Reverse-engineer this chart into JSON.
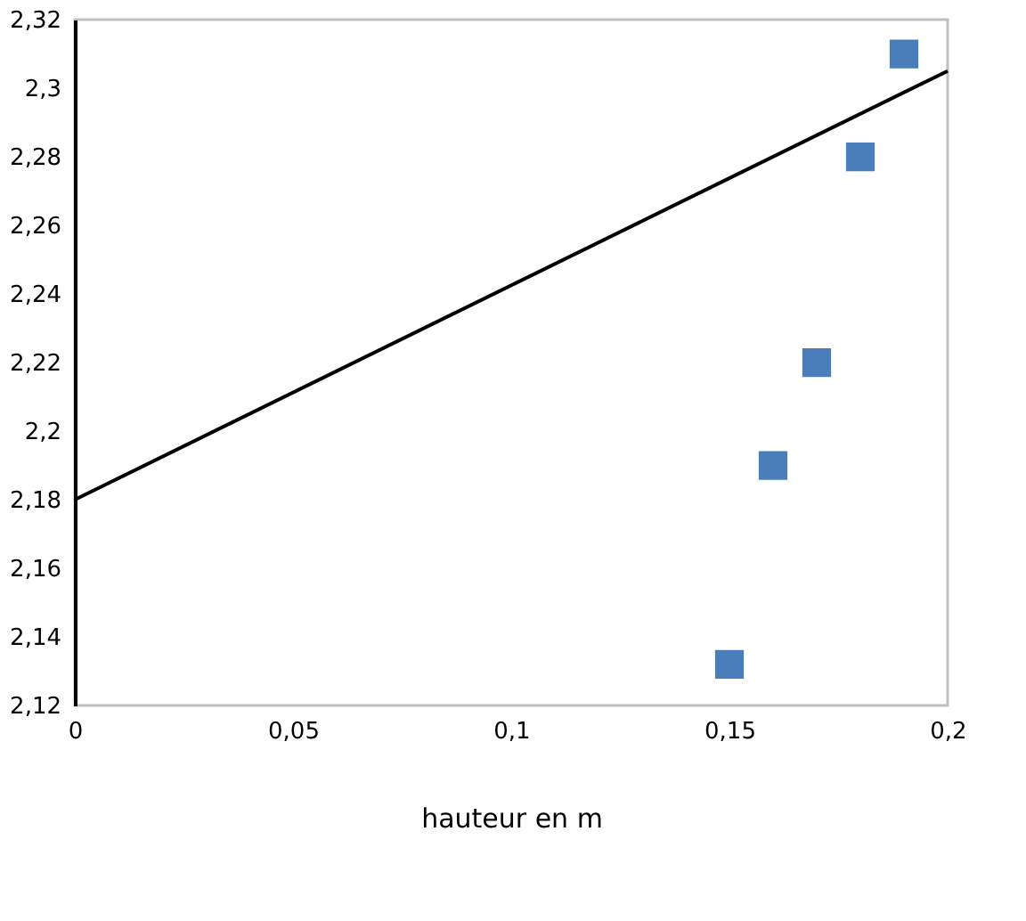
{
  "chart_data": {
    "type": "scatter",
    "xlabel": "hauteur en m",
    "xlim": [
      0,
      0.2
    ],
    "ylim": [
      2.12,
      2.32
    ],
    "xticks": [
      0,
      {
        "value": 0.05,
        "label": "0,05"
      },
      {
        "value": 0.1,
        "label": "0,1"
      },
      {
        "value": 0.15,
        "label": "0,15"
      },
      {
        "value": 0.2,
        "label": "0,2"
      }
    ],
    "yticks": [
      {
        "value": 2.12,
        "label": "2,12"
      },
      {
        "value": 2.14,
        "label": "2,14"
      },
      {
        "value": 2.16,
        "label": "2,16"
      },
      {
        "value": 2.18,
        "label": "2,18"
      },
      {
        "value": 2.2,
        "label": "2,2"
      },
      {
        "value": 2.22,
        "label": "2,22"
      },
      {
        "value": 2.24,
        "label": "2,24"
      },
      {
        "value": 2.26,
        "label": "2,26"
      },
      {
        "value": 2.28,
        "label": "2,28"
      },
      {
        "value": 2.3,
        "label": "2,3"
      },
      {
        "value": 2.32,
        "label": "2,32"
      }
    ],
    "grid": false,
    "series": [
      {
        "marker": "square",
        "color": "#4a7ebb",
        "x": [
          0.15,
          0.16,
          0.17,
          0.18,
          0.19
        ],
        "values": [
          2.132,
          2.19,
          2.22,
          2.28,
          2.31
        ]
      },
      {
        "type": "line",
        "marker": "none",
        "line_style": "solid",
        "color": "#000000",
        "x": [
          0,
          0.2
        ],
        "values": [
          2.18,
          2.305
        ]
      }
    ]
  }
}
